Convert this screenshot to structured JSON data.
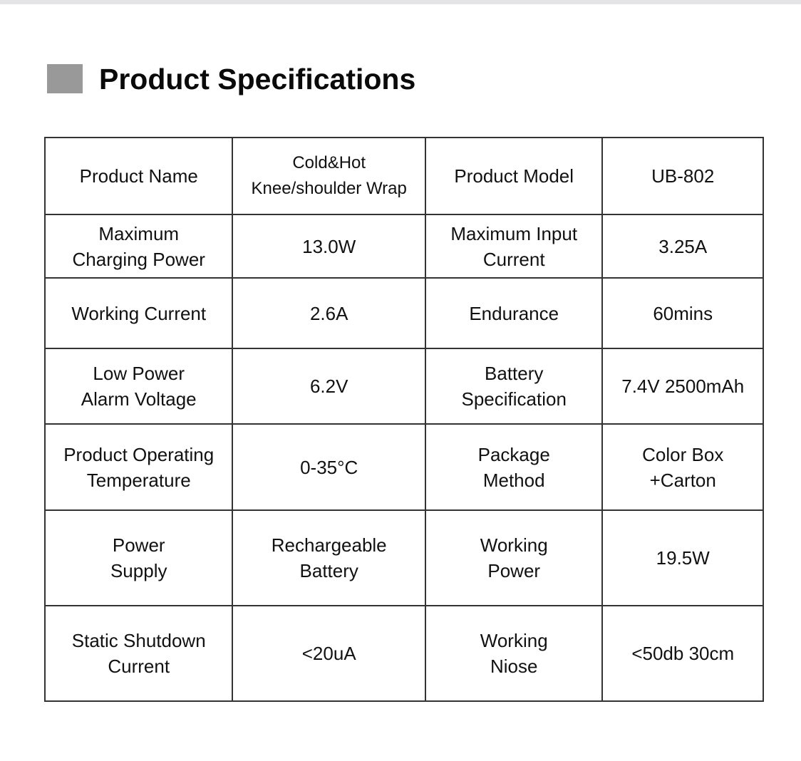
{
  "title": "Product Specifications",
  "colors": {
    "title_marker": "#999999",
    "border": "#333333"
  },
  "rows": [
    [
      "Product Name",
      "Cold&Hot\nKnee/shoulder Wrap",
      "Product Model",
      "UB-802"
    ],
    [
      "Maximum\nCharging Power",
      "13.0W",
      "Maximum Input\nCurrent",
      "3.25A"
    ],
    [
      "Working Current",
      "2.6A",
      "Endurance",
      "60mins"
    ],
    [
      "Low Power\nAlarm Voltage",
      "6.2V",
      "Battery\nSpecification",
      "7.4V 2500mAh"
    ],
    [
      "Product Operating\nTemperature",
      "0-35°C",
      "Package\nMethod",
      "Color Box\n+Carton"
    ],
    [
      "Power\nSupply",
      "Rechargeable\nBattery",
      "Working\nPower",
      "19.5W"
    ],
    [
      "Static Shutdown\nCurrent",
      "<20uA",
      "Working\nNiose",
      "<50db 30cm"
    ]
  ]
}
